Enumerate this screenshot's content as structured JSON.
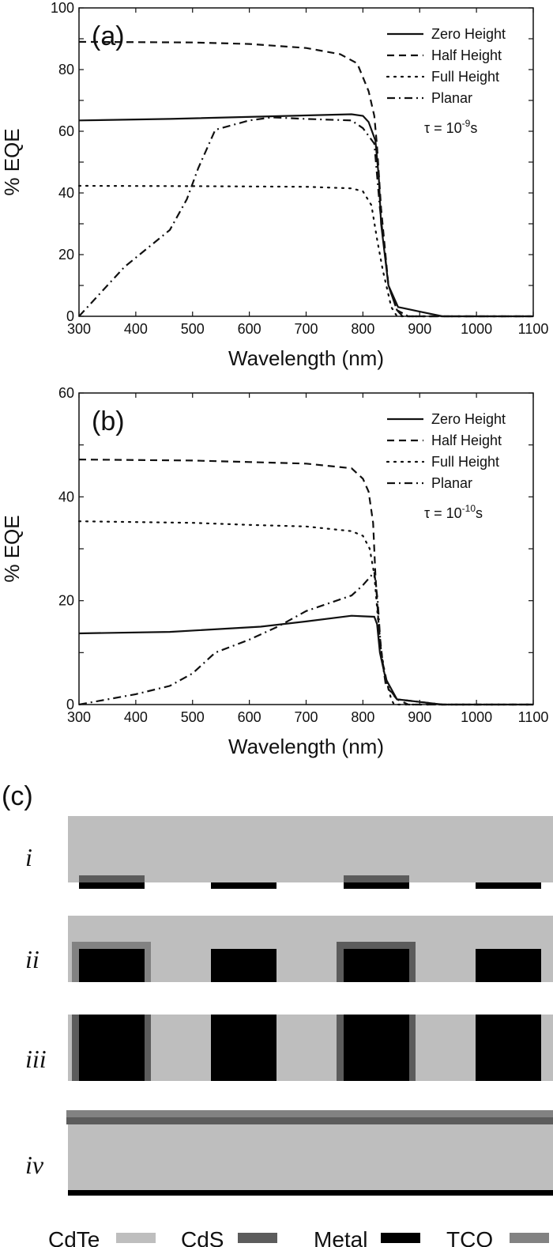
{
  "chart_data": [
    {
      "type": "line",
      "panel_label": "(a)",
      "xlabel": "Wavelength (nm)",
      "ylabel": "% EQE",
      "xlim": [
        300,
        1100
      ],
      "ylim": [
        0,
        100
      ],
      "xticks": [
        300,
        400,
        500,
        600,
        700,
        800,
        900,
        1000,
        1100
      ],
      "yticks": [
        0,
        20,
        40,
        60,
        80,
        100
      ],
      "grid": false,
      "legend_position": "top-right",
      "annotation": {
        "prefix": "τ = 10",
        "exponent": "-9",
        "suffix": "s"
      },
      "series": [
        {
          "name": "Zero Height",
          "style": "solid",
          "x": [
            300,
            460,
            780,
            800,
            810,
            822,
            828,
            832,
            845,
            862,
            900,
            940,
            1100
          ],
          "y": [
            63.5,
            64,
            65.5,
            65,
            63,
            57,
            45,
            30,
            10,
            3,
            1.5,
            0,
            0
          ]
        },
        {
          "name": "Half Height",
          "style": "dashed",
          "x": [
            300,
            500,
            600,
            700,
            760,
            790,
            810,
            820,
            825,
            832,
            845,
            860,
            870,
            1100
          ],
          "y": [
            89,
            88.8,
            88.3,
            87,
            85,
            82,
            73,
            65,
            55,
            35,
            10,
            2,
            0,
            0
          ]
        },
        {
          "name": "Full Height",
          "style": "dotted",
          "x": [
            300,
            500,
            700,
            780,
            800,
            815,
            825,
            835,
            850,
            860,
            1100
          ],
          "y": [
            42.3,
            42.2,
            42,
            41.5,
            40.5,
            36,
            25,
            15,
            3,
            0,
            0
          ]
        },
        {
          "name": "Planar",
          "style": "dashdot",
          "x": [
            300,
            340,
            380,
            460,
            490,
            510,
            540,
            600,
            640,
            700,
            780,
            800,
            820,
            830,
            845,
            860,
            880,
            1100
          ],
          "y": [
            0,
            8,
            16,
            28,
            38,
            48,
            60.5,
            63.5,
            64.5,
            64,
            63.5,
            61,
            56,
            35,
            10,
            2,
            0,
            0
          ]
        }
      ]
    },
    {
      "type": "line",
      "panel_label": "(b)",
      "xlabel": "Wavelength (nm)",
      "ylabel": "% EQE",
      "xlim": [
        300,
        1100
      ],
      "ylim": [
        0,
        60
      ],
      "xticks": [
        300,
        400,
        500,
        600,
        700,
        800,
        900,
        1000,
        1100
      ],
      "yticks": [
        0,
        20,
        40,
        60
      ],
      "grid": false,
      "legend_position": "top-right",
      "annotation": {
        "prefix": "τ = 10",
        "exponent": "-10",
        "suffix": "s"
      },
      "series": [
        {
          "name": "Zero Height",
          "style": "solid",
          "x": [
            300,
            460,
            620,
            700,
            780,
            800,
            820,
            825,
            830,
            840,
            860,
            900,
            940,
            1100
          ],
          "y": [
            13.7,
            14,
            15,
            16,
            17.1,
            17,
            16.9,
            15.5,
            10,
            5,
            1,
            0.5,
            0,
            0
          ]
        },
        {
          "name": "Half Height",
          "style": "dashed",
          "x": [
            300,
            500,
            600,
            700,
            780,
            800,
            810,
            818,
            822,
            828,
            835,
            845,
            860,
            880,
            1100
          ],
          "y": [
            47.2,
            47,
            46.7,
            46.4,
            45.5,
            43.5,
            41,
            35,
            25,
            15,
            8,
            3,
            1,
            0,
            0
          ]
        },
        {
          "name": "Full Height",
          "style": "dotted",
          "x": [
            300,
            500,
            600,
            700,
            780,
            800,
            812,
            820,
            830,
            840,
            850,
            855,
            1100
          ],
          "y": [
            35.3,
            35,
            34.6,
            34.3,
            33.4,
            32.5,
            30,
            25,
            12,
            5,
            1,
            0,
            0
          ]
        },
        {
          "name": "Planar",
          "style": "dashdot",
          "x": [
            300,
            400,
            460,
            500,
            540,
            600,
            650,
            700,
            780,
            800,
            820,
            826,
            832,
            840,
            860,
            900,
            940,
            1100
          ],
          "y": [
            0,
            2,
            3.6,
            6,
            10,
            12.5,
            15,
            18,
            21,
            23,
            25.5,
            20,
            10,
            4,
            1,
            0.5,
            0,
            0
          ]
        }
      ]
    }
  ],
  "diagram": {
    "panel_label": "(c)",
    "rows": [
      "i",
      "ii",
      "iii",
      "iv"
    ],
    "legend": [
      {
        "label": "CdTe",
        "color": "#bebebe"
      },
      {
        "label": "CdS",
        "color": "#5c5c5c"
      },
      {
        "label": "Metal",
        "color": "#000000"
      },
      {
        "label": "TCO",
        "color": "#828282"
      }
    ]
  }
}
